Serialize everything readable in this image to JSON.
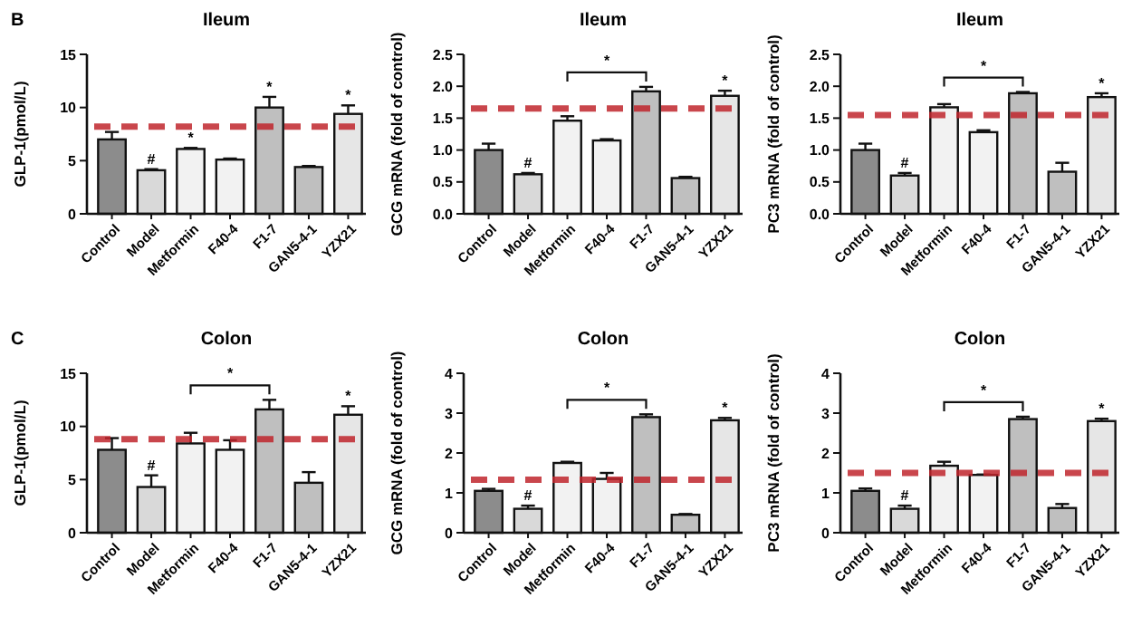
{
  "chart_data": [
    {
      "type": "bar",
      "title": "Ileum",
      "ylabel": "GLP-1(pmol/L)",
      "categories": [
        "Control",
        "Model",
        "Metformin",
        "F40-4",
        "F1-7",
        "GAN5-4-1",
        "YZX21"
      ],
      "values": [
        7.0,
        4.1,
        6.1,
        5.1,
        10.0,
        4.4,
        9.4
      ],
      "errors": [
        [
          7.0,
          7.7
        ],
        [
          4.1,
          4.2
        ],
        [
          6.1,
          6.2
        ],
        [
          5.1,
          5.2
        ],
        [
          10.0,
          11.0
        ],
        [
          4.4,
          4.5
        ],
        [
          9.4,
          10.2
        ]
      ],
      "colors": [
        "#8c8c8c",
        "#d9d9d9",
        "#f2f2f2",
        "#f2f2f2",
        "#bfbfbf",
        "#bfbfbf",
        "#e6e6e6"
      ],
      "ylim": [
        0,
        15
      ],
      "yticks": [
        0,
        5,
        10,
        15
      ],
      "ref_lines": [
        {
          "axis": "y",
          "value": 8.2,
          "color": "#c0262d",
          "line_style": "dashed"
        }
      ],
      "annotations": [
        "B",
        {
          "text": "#",
          "x": "Model",
          "y": 4.2
        },
        {
          "text": "*",
          "x": "Metformin",
          "y": 6.2
        },
        {
          "text": "*",
          "x": "F1-7",
          "y": 11.0
        },
        {
          "text": "*",
          "x": "YZX21",
          "y": 10.2
        }
      ]
    },
    {
      "type": "bar",
      "title": "Ileum",
      "ylabel": "GCG mRNA (fold of control)",
      "categories": [
        "Control",
        "Model",
        "Metformin",
        "F40-4",
        "F1-7",
        "GAN5-4-1",
        "YZX21"
      ],
      "values": [
        1.0,
        0.62,
        1.46,
        1.15,
        1.92,
        0.56,
        1.85
      ],
      "errors": [
        [
          1.0,
          1.1
        ],
        [
          0.62,
          0.64
        ],
        [
          1.46,
          1.53
        ],
        [
          1.15,
          1.17
        ],
        [
          1.92,
          1.99
        ],
        [
          0.56,
          0.58
        ],
        [
          1.85,
          1.93
        ]
      ],
      "colors": [
        "#8c8c8c",
        "#d9d9d9",
        "#f2f2f2",
        "#f2f2f2",
        "#bfbfbf",
        "#bfbfbf",
        "#e6e6e6"
      ],
      "ylim": [
        0,
        2.5
      ],
      "yticks": [
        {
          "value": 0,
          "label": "0.0"
        },
        {
          "value": 0.5,
          "label": "0.5"
        },
        {
          "value": 1,
          "label": "1.0"
        },
        {
          "value": 1.5,
          "label": "1.5"
        },
        {
          "value": 2,
          "label": "2.0"
        },
        {
          "value": 2.5,
          "label": "2.5"
        }
      ],
      "ref_lines": [
        {
          "axis": "y",
          "value": 1.65,
          "color": "#c0262d",
          "line_style": "dashed"
        }
      ],
      "annotations": [
        {
          "text": "#",
          "x": "Model",
          "y": 0.64
        },
        {
          "text": "*",
          "x": "YZX21",
          "y": 1.93
        },
        "*"
      ]
    },
    {
      "type": "bar",
      "title": "Ileum",
      "ylabel": "PC3 mRNA (fold of control)",
      "categories": [
        "Control",
        "Model",
        "Metformin",
        "F40-4",
        "F1-7",
        "GAN5-4-1",
        "YZX21"
      ],
      "values": [
        1.0,
        0.6,
        1.67,
        1.28,
        1.89,
        0.66,
        1.83
      ],
      "errors": [
        [
          1.0,
          1.1
        ],
        [
          0.6,
          0.64
        ],
        [
          1.67,
          1.72
        ],
        [
          1.28,
          1.31
        ],
        [
          1.89,
          1.91
        ],
        [
          0.66,
          0.8
        ],
        [
          1.83,
          1.89
        ]
      ],
      "colors": [
        "#8c8c8c",
        "#d9d9d9",
        "#f2f2f2",
        "#f2f2f2",
        "#bfbfbf",
        "#bfbfbf",
        "#e6e6e6"
      ],
      "ylim": [
        0,
        2.5
      ],
      "yticks": [
        {
          "value": 0,
          "label": "0.0"
        },
        {
          "value": 0.5,
          "label": "0.5"
        },
        {
          "value": 1,
          "label": "1.0"
        },
        {
          "value": 1.5,
          "label": "1.5"
        },
        {
          "value": 2,
          "label": "2.0"
        },
        {
          "value": 2.5,
          "label": "2.5"
        }
      ],
      "ref_lines": [
        {
          "axis": "y",
          "value": 1.55,
          "color": "#c0262d",
          "line_style": "dashed"
        }
      ],
      "annotations": [
        {
          "text": "#",
          "x": "Model",
          "y": 0.64
        },
        {
          "text": "*",
          "x": "YZX21",
          "y": 1.89
        },
        "*"
      ]
    },
    {
      "type": "bar",
      "title": "Colon",
      "ylabel": "GLP-1(pmol/L)",
      "categories": [
        "Control",
        "Model",
        "Metformin",
        "F40-4",
        "F1-7",
        "GAN5-4-1",
        "YZX21"
      ],
      "values": [
        7.8,
        4.3,
        8.4,
        7.8,
        11.6,
        4.7,
        11.1
      ],
      "errors": [
        [
          7.8,
          8.9
        ],
        [
          4.3,
          5.4
        ],
        [
          8.4,
          9.4
        ],
        [
          7.8,
          8.7
        ],
        [
          11.6,
          12.5
        ],
        [
          4.7,
          5.7
        ],
        [
          11.1,
          11.9
        ]
      ],
      "colors": [
        "#8c8c8c",
        "#d9d9d9",
        "#f2f2f2",
        "#f2f2f2",
        "#bfbfbf",
        "#bfbfbf",
        "#e6e6e6"
      ],
      "ylim": [
        0,
        15
      ],
      "yticks": [
        0,
        5,
        10,
        15
      ],
      "ref_lines": [
        {
          "axis": "y",
          "value": 8.8,
          "color": "#c0262d",
          "line_style": "dashed"
        }
      ],
      "annotations": [
        "C",
        {
          "text": "#",
          "x": "Model",
          "y": 5.4
        },
        {
          "text": "*",
          "x": "YZX21",
          "y": 11.9
        },
        "*"
      ]
    },
    {
      "type": "bar",
      "title": "Colon",
      "ylabel": "GCG mRNA (fold of control)",
      "categories": [
        "Control",
        "Model",
        "Metformin",
        "F40-4",
        "F1-7",
        "GAN5-4-1",
        "YZX21"
      ],
      "values": [
        1.05,
        0.6,
        1.75,
        1.35,
        2.9,
        0.45,
        2.82
      ],
      "errors": [
        [
          1.05,
          1.1
        ],
        [
          0.6,
          0.68
        ],
        [
          1.75,
          1.78
        ],
        [
          1.35,
          1.5
        ],
        [
          2.9,
          2.97
        ],
        [
          0.45,
          0.47
        ],
        [
          2.82,
          2.88
        ]
      ],
      "colors": [
        "#8c8c8c",
        "#d9d9d9",
        "#f2f2f2",
        "#f2f2f2",
        "#bfbfbf",
        "#bfbfbf",
        "#e6e6e6"
      ],
      "ylim": [
        0,
        4
      ],
      "yticks": [
        0,
        1,
        2,
        3,
        4
      ],
      "ref_lines": [
        {
          "axis": "y",
          "value": 1.33,
          "color": "#c0262d",
          "line_style": "dashed"
        }
      ],
      "annotations": [
        {
          "text": "#",
          "x": "Model",
          "y": 0.68
        },
        {
          "text": "*",
          "x": "YZX21",
          "y": 2.88
        },
        "*"
      ]
    },
    {
      "type": "bar",
      "title": "Colon",
      "ylabel": "PC3 mRNA (fold of control)",
      "categories": [
        "Control",
        "Model",
        "Metformin",
        "F40-4",
        "F1-7",
        "GAN5-4-1",
        "YZX21"
      ],
      "values": [
        1.05,
        0.6,
        1.68,
        1.45,
        2.85,
        0.62,
        2.8
      ],
      "errors": [
        [
          1.05,
          1.11
        ],
        [
          0.6,
          0.68
        ],
        [
          1.68,
          1.78
        ],
        [
          1.45,
          1.46
        ],
        [
          2.85,
          2.91
        ],
        [
          0.62,
          0.72
        ],
        [
          2.8,
          2.86
        ]
      ],
      "colors": [
        "#8c8c8c",
        "#d9d9d9",
        "#f2f2f2",
        "#f2f2f2",
        "#bfbfbf",
        "#bfbfbf",
        "#e6e6e6"
      ],
      "ylim": [
        0,
        4
      ],
      "yticks": [
        0,
        1,
        2,
        3,
        4
      ],
      "ref_lines": [
        {
          "axis": "y",
          "value": 1.5,
          "color": "#c0262d",
          "line_style": "dashed"
        }
      ],
      "annotations": [
        {
          "text": "#",
          "x": "Model",
          "y": 0.68
        },
        {
          "text": "*",
          "x": "YZX21",
          "y": 2.86
        },
        "*"
      ]
    }
  ]
}
